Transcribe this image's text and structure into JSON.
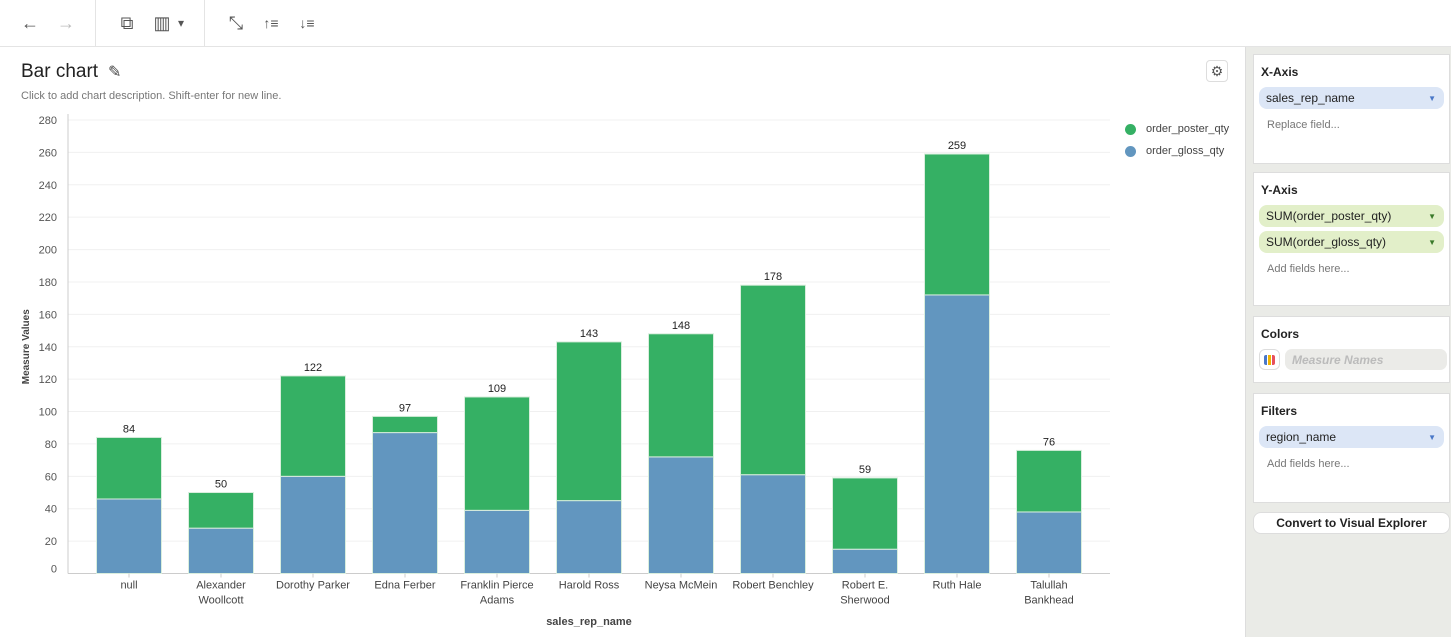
{
  "toolbar": {
    "back": "←",
    "forward": "→",
    "add_chart": "⧉",
    "remove_chart": "▥",
    "dropdown": "▾",
    "swap_axes": "⤡",
    "sort_asc": "↑≡",
    "sort_desc": "↓≡"
  },
  "header": {
    "title": "Bar chart",
    "description": "Click to add chart description. Shift-enter for new line."
  },
  "chart_data": {
    "type": "bar",
    "stacked": true,
    "categories": [
      "null",
      "Alexander Woollcott",
      "Dorothy Parker",
      "Edna Ferber",
      "Franklin Pierce Adams",
      "Harold Ross",
      "Neysa McMein",
      "Robert Benchley",
      "Robert E. Sherwood",
      "Ruth Hale",
      "Talullah Bankhead"
    ],
    "category_lines": [
      [
        "null"
      ],
      [
        "Alexander",
        "Woollcott"
      ],
      [
        "Dorothy Parker"
      ],
      [
        "Edna Ferber"
      ],
      [
        "Franklin Pierce",
        "Adams"
      ],
      [
        "Harold Ross"
      ],
      [
        "Neysa McMein"
      ],
      [
        "Robert Benchley"
      ],
      [
        "Robert E.",
        "Sherwood"
      ],
      [
        "Ruth Hale"
      ],
      [
        "Talullah",
        "Bankhead"
      ]
    ],
    "series": [
      {
        "name": "order_gloss_qty",
        "color": "#6296bf",
        "values": [
          46,
          28,
          60,
          87,
          39,
          45,
          72,
          61,
          15,
          172,
          38
        ]
      },
      {
        "name": "order_poster_qty",
        "color": "#35b064",
        "values": [
          38,
          22,
          62,
          10,
          70,
          98,
          76,
          117,
          44,
          87,
          38
        ]
      }
    ],
    "totals": [
      84,
      50,
      122,
      97,
      109,
      143,
      148,
      178,
      59,
      259,
      76
    ],
    "legend_order": [
      "order_poster_qty",
      "order_gloss_qty"
    ],
    "xlabel": "sales_rep_name",
    "ylabel": "Measure Values",
    "ylim": [
      0,
      280
    ],
    "yticks": [
      0,
      20,
      40,
      60,
      80,
      100,
      120,
      140,
      160,
      180,
      200,
      220,
      240,
      260,
      280
    ],
    "grid": true,
    "legend": "top-right"
  },
  "panel": {
    "x_axis": {
      "title": "X-Axis",
      "field": "sales_rep_name",
      "hint": "Replace field..."
    },
    "y_axis": {
      "title": "Y-Axis",
      "fields": [
        "SUM(order_poster_qty)",
        "SUM(order_gloss_qty)"
      ],
      "hint": "Add fields here..."
    },
    "colors": {
      "title": "Colors",
      "placeholder": "Measure Names"
    },
    "filters": {
      "title": "Filters",
      "field": "region_name",
      "hint": "Add fields here..."
    },
    "convert": "Convert to Visual Explorer"
  }
}
